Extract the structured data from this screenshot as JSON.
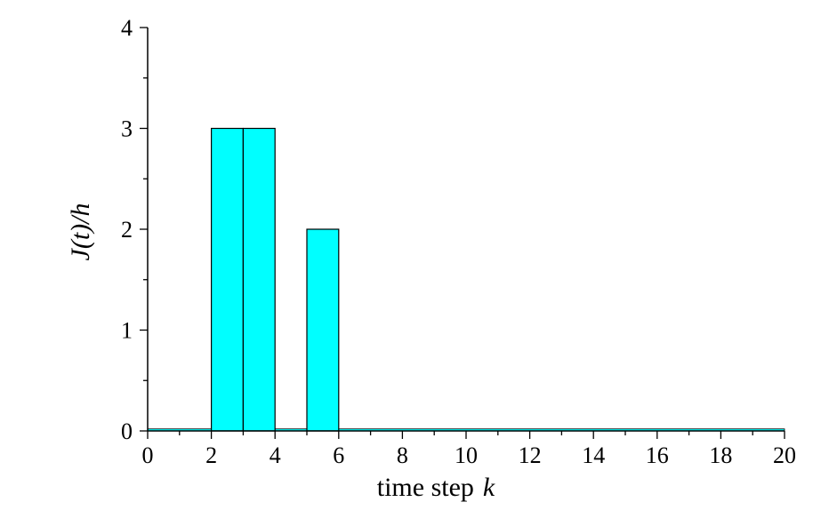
{
  "chart_data": {
    "type": "bar",
    "xlabel": "time step",
    "xlabel_var": "k",
    "ylabel": "J(t)/h",
    "xlim": [
      0,
      20
    ],
    "ylim": [
      0,
      4
    ],
    "xticks": [
      0,
      2,
      4,
      6,
      8,
      10,
      12,
      14,
      16,
      18,
      20
    ],
    "yticks": [
      0,
      1,
      2,
      3,
      4
    ],
    "bar_color": "#00ffff",
    "bar_width": 1,
    "bars": [
      {
        "x": 2,
        "value": 3
      },
      {
        "x": 3,
        "value": 3
      },
      {
        "x": 5,
        "value": 2
      }
    ],
    "baseline_value": 0.02,
    "baseline_color": "#00ffff",
    "grid": false,
    "legend": "none"
  }
}
